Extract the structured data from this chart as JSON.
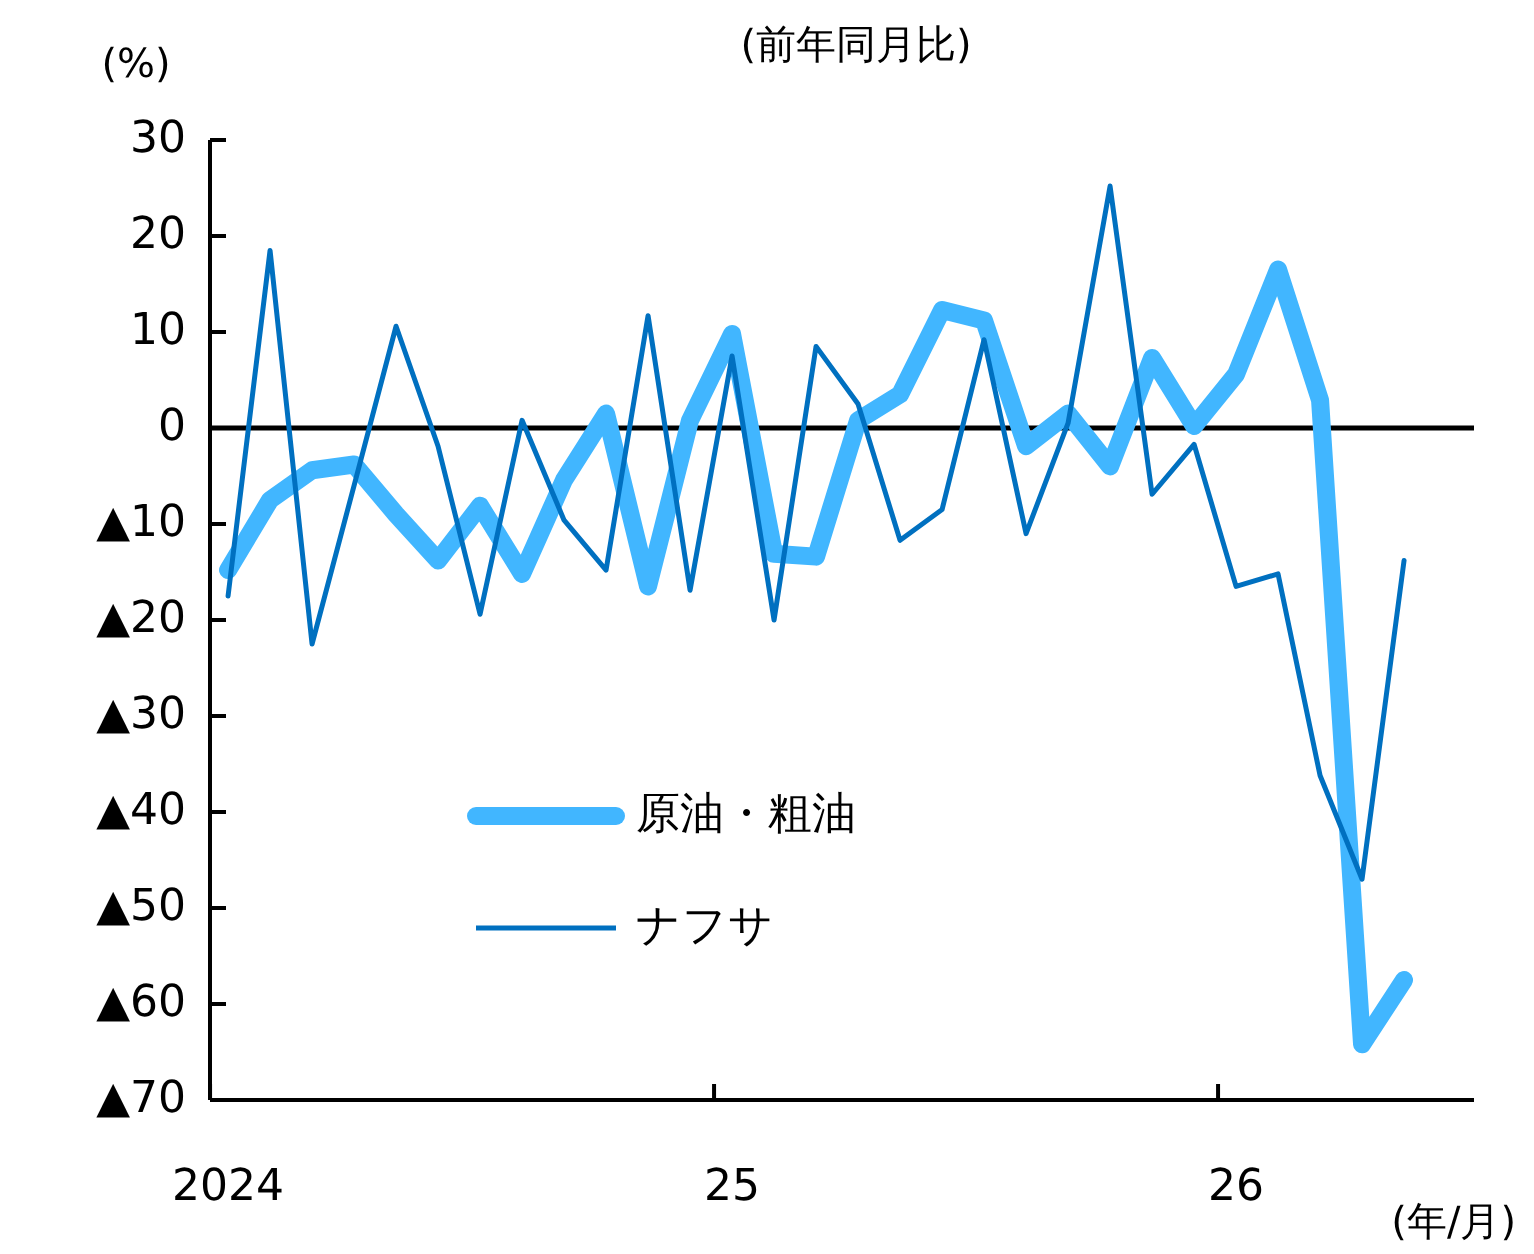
{
  "chart_data": {
    "type": "line",
    "title": "(前年同月比)",
    "ylabel": "(%)",
    "xlabel": "(年/月)",
    "categories": [
      "2024",
      null,
      null,
      null,
      null,
      null,
      null,
      null,
      null,
      null,
      null,
      null,
      "25",
      null,
      null,
      null,
      null,
      null,
      null,
      null,
      null,
      null,
      null,
      null,
      "26",
      null,
      null,
      null,
      null
    ],
    "series": [
      {
        "name": "原油・粗油",
        "color": "#41b6ff",
        "values": [
          -14.8,
          -7.5,
          -4.4,
          -3.8,
          -9,
          -13.8,
          -8.1,
          -15.2,
          -5.4,
          1.5,
          -16.5,
          0.8,
          9.8,
          -13.1,
          -13.4,
          0.8,
          3.5,
          12.3,
          11.2,
          -1.9,
          1.5,
          -4,
          7.3,
          0.2,
          5.6,
          16.5,
          2.9,
          -64.2,
          -57.5
        ]
      },
      {
        "name": "ナフサ",
        "color": "#0070c0",
        "values": [
          -17.5,
          18.5,
          -22.5,
          -6,
          10.6,
          -1.9,
          -19.4,
          0.8,
          -9.6,
          -14.8,
          11.7,
          -16.9,
          7.5,
          -20,
          8.5,
          2.5,
          -11.7,
          -8.5,
          9.2,
          -11,
          0.5,
          25.2,
          -6.9,
          -1.7,
          -16.5,
          -15.2,
          -36.2,
          -47,
          -13.8
        ]
      }
    ],
    "ylim": [
      -70,
      30
    ],
    "yticks": [
      {
        "value": -70,
        "label": "▲70"
      },
      {
        "value": -60,
        "label": "▲60"
      },
      {
        "value": -50,
        "label": "▲50"
      },
      {
        "value": -40,
        "label": "▲40"
      },
      {
        "value": -30,
        "label": "▲30"
      },
      {
        "value": -20,
        "label": "▲20"
      },
      {
        "value": -10,
        "label": "▲10"
      },
      0,
      10,
      20,
      30
    ],
    "ref_lines": [
      {
        "axis": "y",
        "value": 0,
        "color": "#000000"
      }
    ],
    "legend": "center",
    "grid": false,
    "marker": "none",
    "line_style": "solid"
  }
}
